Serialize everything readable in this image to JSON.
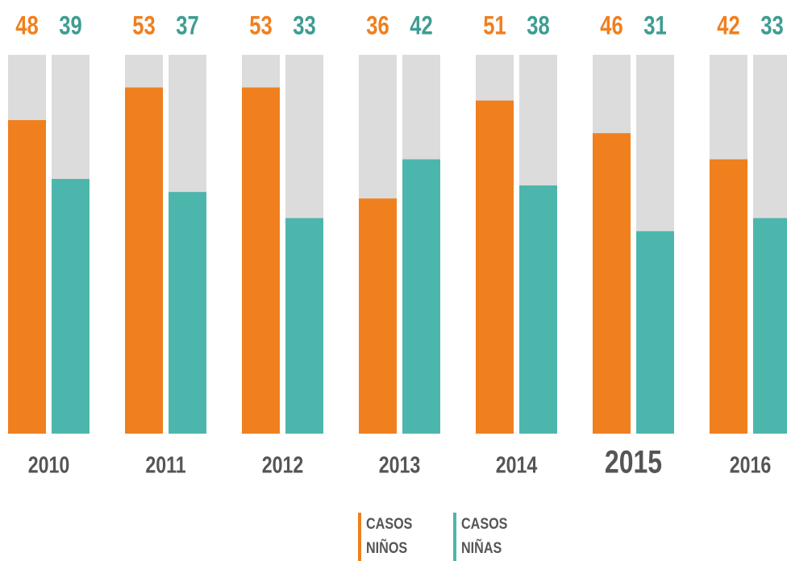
{
  "chart_data": {
    "type": "bar",
    "categories": [
      "2010",
      "2011",
      "2012",
      "2013",
      "2014",
      "2015",
      "2016"
    ],
    "series": [
      {
        "name": "CASOS NIÑOS",
        "color": "#f07f1e",
        "label_color": "#f07f1e",
        "values": [
          48,
          53,
          53,
          36,
          51,
          46,
          42
        ]
      },
      {
        "name": "CASOS NIÑAS",
        "color": "#4db6ac",
        "label_color": "#3e9d92",
        "values": [
          39,
          37,
          33,
          42,
          38,
          31,
          33
        ]
      }
    ],
    "ylim": [
      0,
      58
    ],
    "track_color": "#dcdcdc",
    "highlight": "2015"
  }
}
